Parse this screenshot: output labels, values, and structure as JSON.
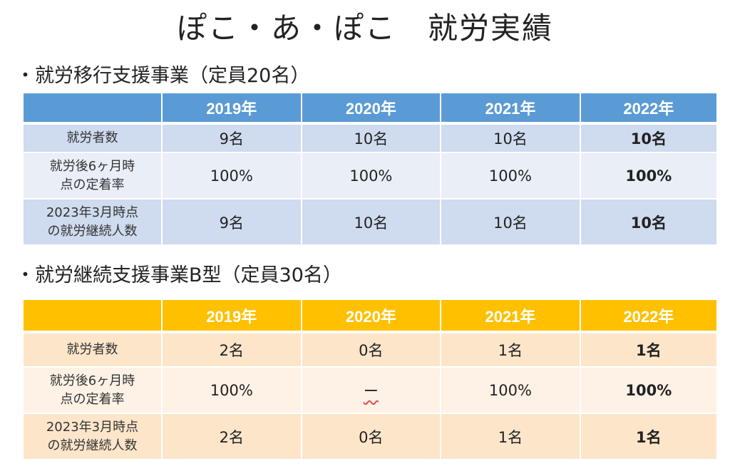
{
  "title": "ぽこ・あ・ぽこ　就労実績",
  "sections": [
    {
      "heading": "・就労移行支援事業（定員20名）",
      "headers": [
        "",
        "2019年",
        "2020年",
        "2021年",
        "2022年"
      ],
      "rows": [
        {
          "label": "就労者数",
          "values": [
            "9名",
            "10名",
            "10名",
            "10名"
          ]
        },
        {
          "label": "就労後6ヶ月時\n点の定着率",
          "values": [
            "100%",
            "100%",
            "100%",
            "100%"
          ]
        },
        {
          "label": "2023年3月時点\nの就労継続人数",
          "values": [
            "9名",
            "10名",
            "10名",
            "10名"
          ]
        }
      ]
    },
    {
      "heading": "・就労継続支援事業B型（定員30名）",
      "headers": [
        "",
        "2019年",
        "2020年",
        "2021年",
        "2022年"
      ],
      "rows": [
        {
          "label": "就労者数",
          "values": [
            "2名",
            "0名",
            "1名",
            "1名"
          ]
        },
        {
          "label": "就労後6ヶ月時\n点の定着率",
          "values": [
            "100%",
            "ー",
            "100%",
            "100%"
          ]
        },
        {
          "label": "2023年3月時点\nの就労継続人数",
          "values": [
            "2名",
            "0名",
            "1名",
            "1名"
          ]
        }
      ]
    }
  ],
  "colors": {
    "blue_header": "#5b9bd5",
    "orange_header": "#ffc000"
  }
}
